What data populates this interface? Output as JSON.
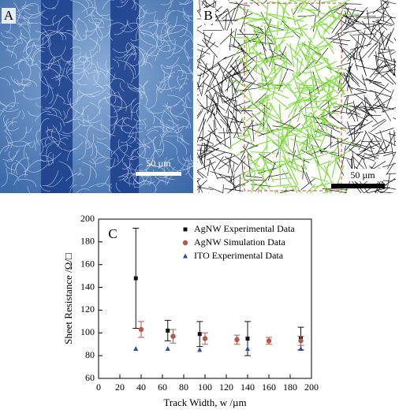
{
  "panels": {
    "a": {
      "label": "A",
      "scale_bar": "50 µm"
    },
    "b": {
      "label": "B",
      "scale_bar": "50 µm"
    }
  },
  "chart_data": {
    "type": "scatter",
    "label": "C",
    "x_label": "Track Width, w /µm",
    "y_label": "Sheet Resistance /Ω/□",
    "xlim": [
      0,
      200
    ],
    "xticks": [
      0,
      20,
      40,
      60,
      80,
      100,
      120,
      140,
      160,
      180,
      200
    ],
    "ylim": [
      60,
      200
    ],
    "yticks": [
      60,
      80,
      100,
      120,
      140,
      160,
      180,
      200
    ],
    "legend": "top-right",
    "series": [
      {
        "name": "AgNW Experimental Data",
        "color": "#111111",
        "marker": "square",
        "x": [
          35,
          65,
          95,
          140,
          190
        ],
        "values": [
          148,
          102,
          99,
          95,
          95
        ],
        "errors": [
          44,
          9,
          11,
          15,
          10
        ]
      },
      {
        "name": "AgNW Simulation Data",
        "color": "#b5584a",
        "marker": "circle",
        "x": [
          40,
          70,
          100,
          130,
          160,
          190
        ],
        "values": [
          103,
          97,
          95,
          94,
          93,
          93
        ],
        "errors": [
          7,
          6,
          5,
          4,
          3,
          4
        ]
      },
      {
        "name": "ITO Experimental Data",
        "color": "#2b4fa0",
        "marker": "triangle",
        "x": [
          35,
          65,
          95,
          140,
          190
        ],
        "values": [
          86,
          86,
          85,
          86,
          86
        ]
      }
    ]
  }
}
